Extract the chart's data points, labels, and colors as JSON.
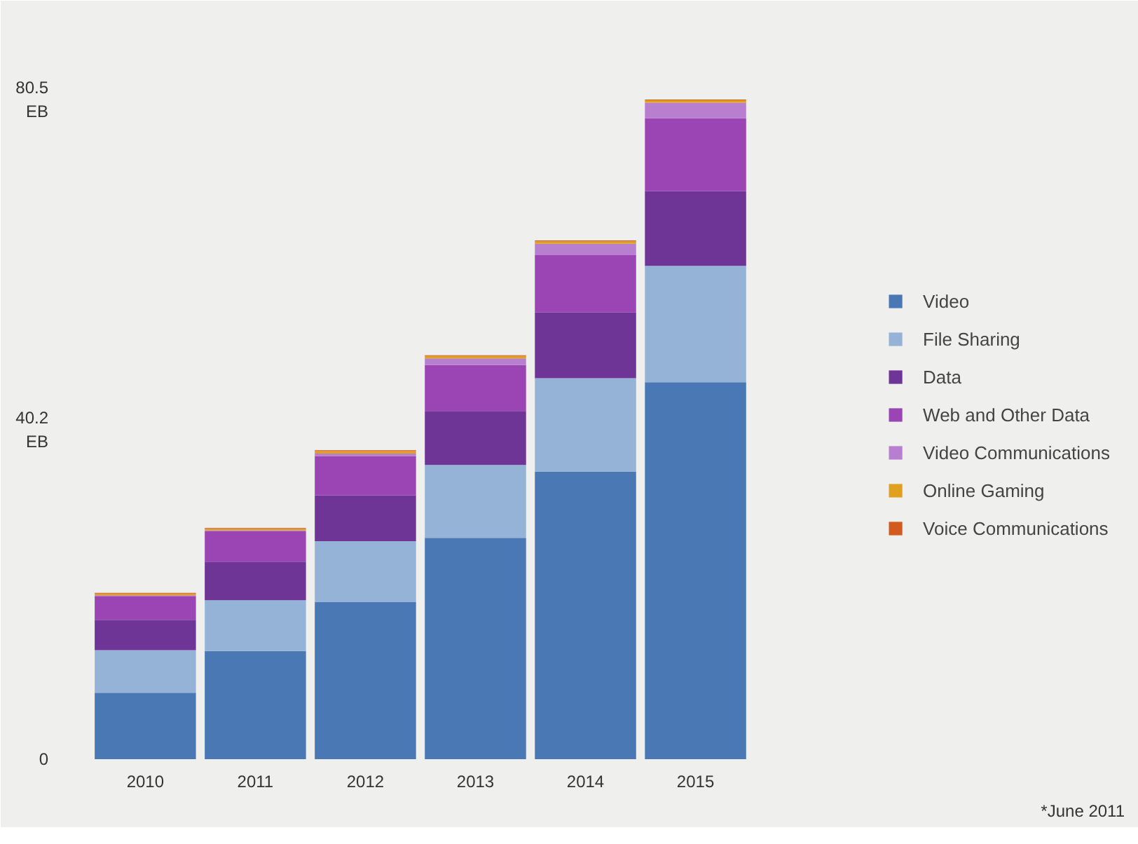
{
  "chart_data": {
    "type": "bar",
    "stacked": true,
    "categories": [
      "2010",
      "2011",
      "2012",
      "2013",
      "2014",
      "2015"
    ],
    "series": [
      {
        "name": "Video",
        "color": "#4a78b5",
        "values": [
          8.1,
          13.2,
          19.2,
          27.0,
          35.1,
          46.0
        ]
      },
      {
        "name": "File Sharing",
        "color": "#95b3d7",
        "values": [
          5.2,
          6.2,
          7.4,
          8.9,
          11.4,
          14.2
        ]
      },
      {
        "name": "Data",
        "color": "#6e3596",
        "values": [
          3.7,
          4.7,
          5.6,
          6.6,
          8.0,
          9.1
        ]
      },
      {
        "name": "Web and Other Data",
        "color": "#9b45b5",
        "values": [
          2.9,
          3.7,
          4.8,
          5.6,
          7.0,
          8.9
        ]
      },
      {
        "name": "Video Communications",
        "color": "#b87fd0",
        "values": [
          0.1,
          0.1,
          0.3,
          0.8,
          1.4,
          1.9
        ]
      },
      {
        "name": "Online Gaming",
        "color": "#e0a020",
        "values": [
          0.2,
          0.2,
          0.3,
          0.3,
          0.3,
          0.3
        ]
      },
      {
        "name": "Voice Communications",
        "color": "#d35a1f",
        "values": [
          0.1,
          0.1,
          0.1,
          0.1,
          0.1,
          0.1
        ]
      }
    ],
    "ylim": [
      0,
      84
    ],
    "yticks": [
      0,
      {
        "value": 40.2,
        "label": "40.2\nEB"
      },
      {
        "value": 80.5,
        "label": "80.5\nEB"
      }
    ],
    "grid": false,
    "legend": "right",
    "annotations": [
      "*June 2011"
    ]
  }
}
